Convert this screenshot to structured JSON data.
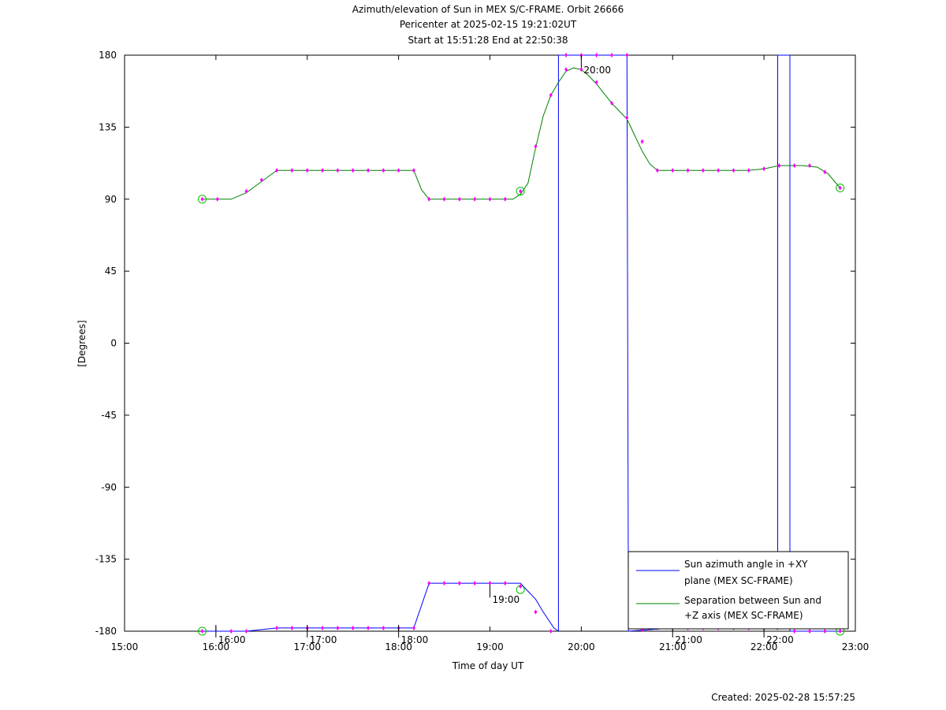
{
  "chart_data": {
    "type": "line",
    "title_lines": [
      "Azimuth/elevation of Sun in MEX S/C-FRAME.  Orbit 26666",
      "Pericenter at 2025-02-15 19:21:02UT",
      "Start at 15:51:28 End at 22:50:38"
    ],
    "xlabel": "Time of day UT",
    "ylabel": "[Degrees]",
    "xlim": [
      "15:00",
      "23:00"
    ],
    "ylim": [
      -180,
      180
    ],
    "x_ticks": [
      "15:00",
      "16:00",
      "17:00",
      "18:00",
      "19:00",
      "20:00",
      "21:00",
      "22:00",
      "23:00"
    ],
    "y_ticks": [
      "180",
      "135",
      "90",
      "45",
      "0",
      "-45",
      "-90",
      "-135",
      "-180"
    ],
    "hour_markers": [
      {
        "label": "16:00",
        "t": "16:00",
        "y": -180
      },
      {
        "label": "17:00",
        "t": "17:00",
        "y": -180
      },
      {
        "label": "18:00",
        "t": "18:00",
        "y": -180
      },
      {
        "label": "19:00",
        "t": "19:00",
        "y": -155
      },
      {
        "label": "20:00",
        "t": "20:00",
        "y": 176
      },
      {
        "label": "21:00",
        "t": "21:00",
        "y": -180
      },
      {
        "label": "22:00",
        "t": "22:00",
        "y": -180
      }
    ],
    "series": [
      {
        "name": "Sun azimuth angle in +XY plane (MEX SC-FRAME)",
        "legend_lines": [
          "Sun azimuth angle in +XY",
          "plane (MEX SC-FRAME)"
        ],
        "color": "#0000ff",
        "segments": [
          [
            [
              "15:51",
              "-180"
            ],
            [
              "16:20",
              "-180"
            ],
            [
              "16:40",
              "-178"
            ],
            [
              "17:30",
              "-178"
            ],
            [
              "18:10",
              "-178"
            ],
            [
              "18:20",
              "-150"
            ],
            [
              "19:20",
              "-150"
            ],
            [
              "19:30",
              "-160"
            ],
            [
              "19:35",
              "-168"
            ],
            [
              "19:42",
              "-178"
            ],
            [
              "19:45",
              "-180"
            ]
          ],
          [
            [
              "19:45",
              "-180"
            ],
            [
              "19:45",
              "180"
            ]
          ],
          [
            [
              "19:45",
              "180"
            ],
            [
              "20:30",
              "180"
            ]
          ],
          [
            [
              "20:30",
              "180"
            ],
            [
              "20:31",
              "-180"
            ]
          ],
          [
            [
              "20:31",
              "-180"
            ],
            [
              "21:00",
              "-178"
            ],
            [
              "22:08",
              "-178"
            ],
            [
              "22:09",
              "-179"
            ]
          ],
          [
            [
              "22:09",
              "-179"
            ],
            [
              "22:09",
              "180"
            ],
            [
              "22:17",
              "180"
            ],
            [
              "22:17",
              "-180"
            ]
          ],
          [
            [
              "22:17",
              "-180"
            ],
            [
              "22:50",
              "-180"
            ]
          ]
        ]
      },
      {
        "name": "Separation between Sun and +Z axis (MEX SC-FRAME)",
        "legend_lines": [
          "Separation between Sun and",
          "+Z axis (MEX SC-FRAME)"
        ],
        "color": "#008000",
        "segments": [
          [
            [
              "15:51",
              "90"
            ],
            [
              "16:10",
              "90"
            ],
            [
              "16:20",
              "94"
            ],
            [
              "16:30",
              "101"
            ],
            [
              "16:40",
              "108"
            ],
            [
              "17:00",
              "108"
            ],
            [
              "18:10",
              "108"
            ],
            [
              "18:15",
              "96"
            ],
            [
              "18:20",
              "90"
            ],
            [
              "19:15",
              "90"
            ],
            [
              "19:20",
              "93"
            ],
            [
              "19:25",
              "100"
            ],
            [
              "19:30",
              "122"
            ],
            [
              "19:35",
              "142"
            ],
            [
              "19:40",
              "155"
            ],
            [
              "19:45",
              "163"
            ],
            [
              "19:50",
              "170"
            ],
            [
              "19:55",
              "172"
            ],
            [
              "20:00",
              "171"
            ],
            [
              "20:05",
              "167"
            ],
            [
              "20:10",
              "162"
            ],
            [
              "20:20",
              "150"
            ],
            [
              "20:30",
              "140"
            ],
            [
              "20:35",
              "130"
            ],
            [
              "20:40",
              "120"
            ],
            [
              "20:45",
              "112"
            ],
            [
              "20:50",
              "108"
            ],
            [
              "21:00",
              "108"
            ],
            [
              "21:50",
              "108"
            ],
            [
              "22:00",
              "109"
            ],
            [
              "22:10",
              "111"
            ],
            [
              "22:25",
              "111"
            ],
            [
              "22:35",
              "110"
            ],
            [
              "22:42",
              "106"
            ],
            [
              "22:50",
              "97"
            ]
          ]
        ]
      }
    ],
    "markers": {
      "color": "#ff00ff",
      "points": [
        [
          "15:51",
          "90"
        ],
        [
          "16:01",
          "90"
        ],
        [
          "16:20",
          "95"
        ],
        [
          "16:30",
          "102"
        ],
        [
          "16:40",
          "108"
        ],
        [
          "16:50",
          "108"
        ],
        [
          "17:00",
          "108"
        ],
        [
          "17:10",
          "108"
        ],
        [
          "17:20",
          "108"
        ],
        [
          "17:30",
          "108"
        ],
        [
          "17:40",
          "108"
        ],
        [
          "17:50",
          "108"
        ],
        [
          "18:00",
          "108"
        ],
        [
          "18:10",
          "108"
        ],
        [
          "18:20",
          "90"
        ],
        [
          "18:30",
          "90"
        ],
        [
          "18:40",
          "90"
        ],
        [
          "18:50",
          "90"
        ],
        [
          "19:00",
          "90"
        ],
        [
          "19:10",
          "90"
        ],
        [
          "19:20",
          "95"
        ],
        [
          "19:30",
          "123"
        ],
        [
          "19:40",
          "155"
        ],
        [
          "19:50",
          "171"
        ],
        [
          "20:00",
          "171"
        ],
        [
          "20:10",
          "163"
        ],
        [
          "20:20",
          "150"
        ],
        [
          "20:30",
          "141"
        ],
        [
          "20:40",
          "126"
        ],
        [
          "20:50",
          "108"
        ],
        [
          "21:00",
          "108"
        ],
        [
          "21:10",
          "108"
        ],
        [
          "21:20",
          "108"
        ],
        [
          "21:30",
          "108"
        ],
        [
          "21:40",
          "108"
        ],
        [
          "21:50",
          "108"
        ],
        [
          "22:00",
          "109"
        ],
        [
          "22:10",
          "111"
        ],
        [
          "22:20",
          "111"
        ],
        [
          "22:30",
          "111"
        ],
        [
          "22:40",
          "107"
        ],
        [
          "22:50",
          "97"
        ],
        [
          "15:51",
          "-180"
        ],
        [
          "16:10",
          "-180"
        ],
        [
          "16:20",
          "-180"
        ],
        [
          "16:40",
          "-178"
        ],
        [
          "16:50",
          "-178"
        ],
        [
          "17:00",
          "-178"
        ],
        [
          "17:10",
          "-178"
        ],
        [
          "17:20",
          "-178"
        ],
        [
          "17:30",
          "-178"
        ],
        [
          "17:40",
          "-178"
        ],
        [
          "17:50",
          "-178"
        ],
        [
          "18:00",
          "-178"
        ],
        [
          "18:10",
          "-178"
        ],
        [
          "18:20",
          "-150"
        ],
        [
          "18:30",
          "-150"
        ],
        [
          "18:40",
          "-150"
        ],
        [
          "18:50",
          "-150"
        ],
        [
          "19:00",
          "-150"
        ],
        [
          "19:10",
          "-150"
        ],
        [
          "19:20",
          "-152"
        ],
        [
          "19:30",
          "-168"
        ],
        [
          "19:40",
          "-180"
        ],
        [
          "19:50",
          "180"
        ],
        [
          "20:00",
          "180"
        ],
        [
          "20:10",
          "180"
        ],
        [
          "20:20",
          "180"
        ],
        [
          "20:30",
          "180"
        ],
        [
          "20:40",
          "-179"
        ],
        [
          "20:50",
          "-178"
        ],
        [
          "21:00",
          "-178"
        ],
        [
          "21:10",
          "-178"
        ],
        [
          "21:20",
          "-178"
        ],
        [
          "21:30",
          "-178"
        ],
        [
          "21:40",
          "-178"
        ],
        [
          "21:50",
          "-178"
        ],
        [
          "22:00",
          "-178"
        ],
        [
          "22:20",
          "-180"
        ],
        [
          "22:30",
          "-180"
        ],
        [
          "22:40",
          "-180"
        ],
        [
          "22:50",
          "-180"
        ]
      ]
    },
    "circles": {
      "color": "#00c000",
      "points": [
        [
          "15:51",
          "90"
        ],
        [
          "19:20",
          "95"
        ],
        [
          "22:50",
          "97"
        ],
        [
          "15:51",
          "-180"
        ],
        [
          "19:20",
          "-154"
        ],
        [
          "22:50",
          "-180"
        ]
      ]
    },
    "legend_placement": "bottom-right",
    "grid": false
  },
  "footer": {
    "created": "Created: 2025-02-28 15:57:25"
  }
}
